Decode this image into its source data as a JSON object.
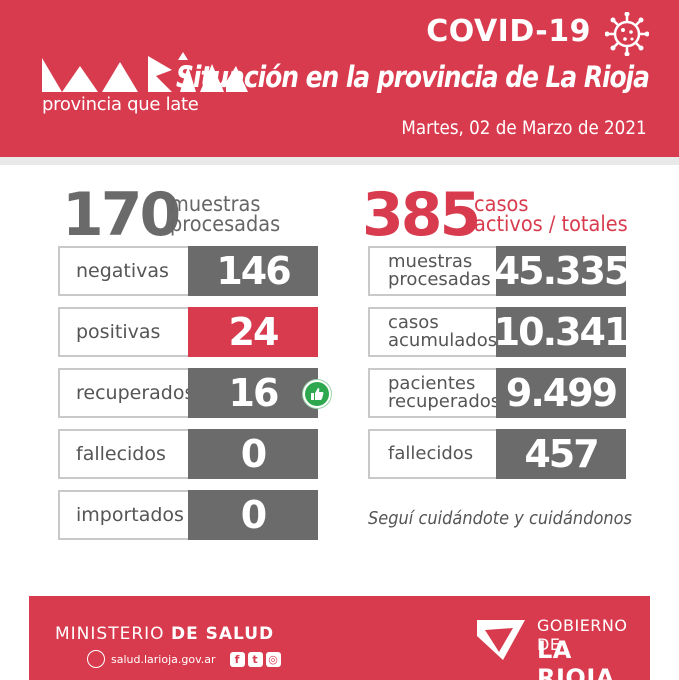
{
  "header": {
    "logo_tagline": "provincia que late",
    "covid_title": "COVID-19",
    "situation": "Situación en la provincia de La Rioja",
    "date": "Martes, 02 de Marzo de 2021"
  },
  "left": {
    "total": "170",
    "total_label_1": "muestras",
    "total_label_2": "procesadas",
    "rows": [
      {
        "label": "negativas",
        "value": "146",
        "color": "#6b6b6b"
      },
      {
        "label": "positivas",
        "value": "24",
        "color": "#d93b4e"
      },
      {
        "label": "recuperados",
        "value": "16",
        "color": "#ffffff"
      },
      {
        "label": "fallecidos",
        "value": "0",
        "color": "#ffffff"
      },
      {
        "label": "importados",
        "value": "0",
        "color": "#ffffff"
      }
    ]
  },
  "right": {
    "total": "385",
    "total_label_1": "casos",
    "total_label_2": "activos / totales",
    "rows": [
      {
        "label_1": "muestras",
        "label_2": "procesadas",
        "value": "45.335"
      },
      {
        "label_1": "casos",
        "label_2": "acumulados",
        "value": "10.341"
      },
      {
        "label_1": "pacientes",
        "label_2": "recuperados",
        "value": "9.499"
      },
      {
        "label_1": "fallecidos",
        "label_2": "",
        "value": "457"
      }
    ]
  },
  "slogan": "Seguí cuidándote y cuidándonos",
  "footer": {
    "ministerio_1": "MINISTERIO",
    "ministerio_2": "DE SALUD",
    "website": "salud.larioja.gov.ar",
    "gobierno_1": "GOBIERNO DE",
    "gobierno_2": "LA RIOJA"
  },
  "colors": {
    "brand_red": "#d93b4e",
    "gray": "#6b6b6b",
    "green": "#2ea84f"
  }
}
